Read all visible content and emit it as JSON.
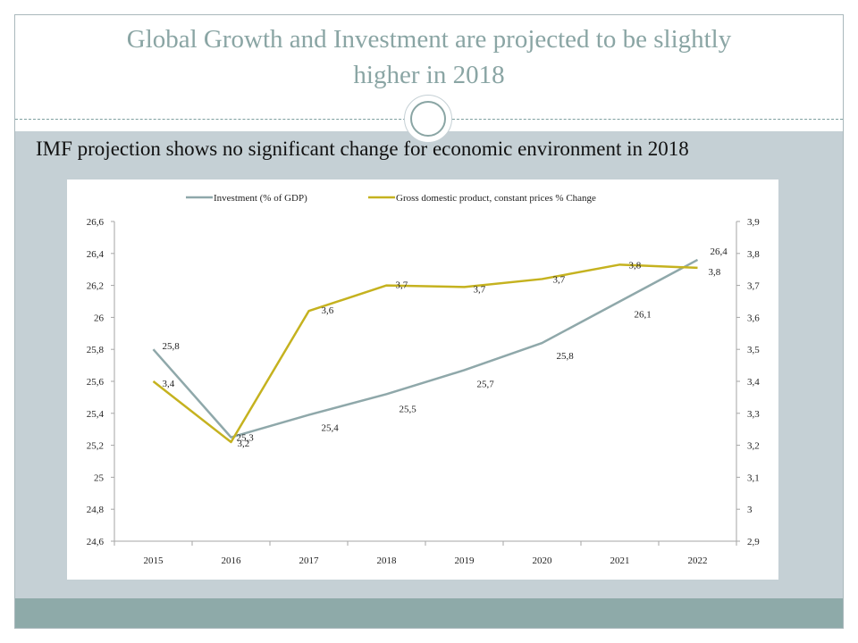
{
  "slide": {
    "title_line1": "Global Growth and Investment are projected to be slightly",
    "title_line2": "higher in 2018",
    "subtitle": "IMF projection shows no significant change for economic environment in 2018"
  },
  "colors": {
    "investment": "#8fa8aa",
    "gdp": "#c5b21f",
    "title": "#8aa5a4",
    "band": "#c5d0d5",
    "footer": "#8eaaa9"
  },
  "chart_data": {
    "type": "line",
    "title": "",
    "categories": [
      "2015",
      "2016",
      "2017",
      "2018",
      "2019",
      "2020",
      "2021",
      "2022"
    ],
    "series": [
      {
        "name": "Investment (% of GDP)",
        "axis": "left",
        "values": [
          25.8,
          25.25,
          25.39,
          25.52,
          25.67,
          25.84,
          26.1,
          26.36
        ],
        "labels": [
          "25,8",
          "25,3",
          "25,4",
          "25,5",
          "25,7",
          "25,8",
          "26,1",
          "26,4"
        ]
      },
      {
        "name": "Gross domestic product, constant prices % Change",
        "axis": "right",
        "values": [
          3.4,
          3.21,
          3.62,
          3.7,
          3.695,
          3.72,
          3.765,
          3.755
        ],
        "labels": [
          "3,4",
          "3,2",
          "3,6",
          "3,7",
          "3,7",
          "3,7",
          "3,8",
          "3,8"
        ]
      }
    ],
    "y_left": {
      "min": 24.6,
      "max": 26.6,
      "ticks": [
        "26,6",
        "26,4",
        "26,2",
        "26",
        "25,8",
        "25,6",
        "25,4",
        "25,2",
        "25",
        "24,8",
        "24,6"
      ]
    },
    "y_right": {
      "min": 2.9,
      "max": 3.9,
      "ticks": [
        "3,9",
        "3,8",
        "3,7",
        "3,6",
        "3,5",
        "3,4",
        "3,3",
        "3,2",
        "3,1",
        "3",
        "2,9"
      ]
    },
    "grid": false,
    "legend_position": "top"
  }
}
